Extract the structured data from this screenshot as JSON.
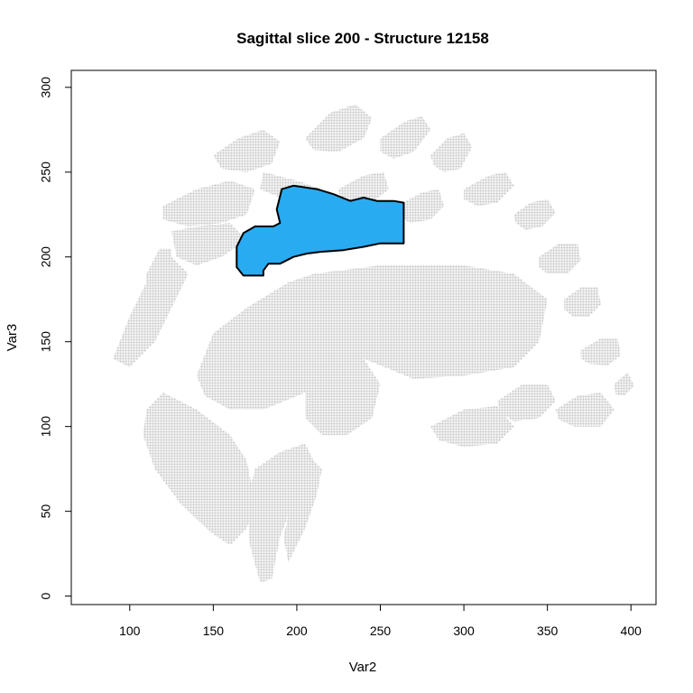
{
  "chart_data": {
    "type": "scatter",
    "title": "Sagittal slice 200 - Structure 12158",
    "xlabel": "Var2",
    "ylabel": "Var3",
    "xlim": [
      65,
      415
    ],
    "ylim": [
      -5,
      310
    ],
    "x_ticks": [
      100,
      150,
      200,
      250,
      300,
      350,
      400
    ],
    "y_ticks": [
      0,
      50,
      100,
      150,
      200,
      250,
      300
    ],
    "grid": false,
    "background_color": "#d3d3d3",
    "structure_color": "#29abf2",
    "outline_color": "#000000",
    "series": [
      {
        "name": "",
        "role": "background",
        "polygons": [
          [
            [
              140,
              130
            ],
            [
              150,
              155
            ],
            [
              170,
              170
            ],
            [
              195,
              185
            ],
            [
              210,
              190
            ],
            [
              250,
              195
            ],
            [
              300,
              195
            ],
            [
              330,
              190
            ],
            [
              350,
              175
            ],
            [
              345,
              150
            ],
            [
              330,
              135
            ],
            [
              300,
              130
            ],
            [
              270,
              128
            ],
            [
              240,
              140
            ],
            [
              225,
              130
            ],
            [
              205,
              120
            ],
            [
              180,
              110
            ],
            [
              160,
              110
            ],
            [
              145,
              118
            ]
          ],
          [
            [
              120,
              120
            ],
            [
              140,
              110
            ],
            [
              160,
              95
            ],
            [
              170,
              80
            ],
            [
              175,
              55
            ],
            [
              170,
              40
            ],
            [
              160,
              30
            ],
            [
              148,
              38
            ],
            [
              130,
              55
            ],
            [
              115,
              75
            ],
            [
              108,
              95
            ],
            [
              110,
              110
            ]
          ],
          [
            [
              175,
              75
            ],
            [
              190,
              85
            ],
            [
              205,
              90
            ],
            [
              210,
              80
            ],
            [
              200,
              60
            ],
            [
              190,
              35
            ],
            [
              185,
              10
            ],
            [
              178,
              8
            ],
            [
              172,
              30
            ],
            [
              170,
              55
            ]
          ],
          [
            [
              205,
              120
            ],
            [
              225,
              130
            ],
            [
              240,
              140
            ],
            [
              250,
              125
            ],
            [
              245,
              105
            ],
            [
              230,
              95
            ],
            [
              215,
              95
            ],
            [
              205,
              105
            ]
          ],
          [
            [
              195,
              20
            ],
            [
              205,
              40
            ],
            [
              212,
              60
            ],
            [
              215,
              75
            ],
            [
              205,
              85
            ],
            [
              198,
              60
            ],
            [
              192,
              35
            ]
          ],
          [
            [
              180,
              250
            ],
            [
              200,
              245
            ],
            [
              215,
              240
            ],
            [
              220,
              230
            ],
            [
              205,
              228
            ],
            [
              190,
              235
            ],
            [
              178,
              240
            ]
          ],
          [
            [
              120,
              230
            ],
            [
              140,
              240
            ],
            [
              160,
              245
            ],
            [
              175,
              240
            ],
            [
              170,
              225
            ],
            [
              155,
              220
            ],
            [
              135,
              218
            ],
            [
              120,
              222
            ]
          ],
          [
            [
              90,
              140
            ],
            [
              100,
              165
            ],
            [
              110,
              185
            ],
            [
              125,
              200
            ],
            [
              135,
              190
            ],
            [
              125,
              170
            ],
            [
              115,
              150
            ],
            [
              100,
              135
            ]
          ],
          [
            [
              125,
              215
            ],
            [
              140,
              218
            ],
            [
              160,
              220
            ],
            [
              170,
              210
            ],
            [
              155,
              200
            ],
            [
              140,
              195
            ],
            [
              128,
              200
            ]
          ],
          [
            [
              150,
              260
            ],
            [
              165,
              270
            ],
            [
              180,
              275
            ],
            [
              190,
              268
            ],
            [
              185,
              255
            ],
            [
              170,
              250
            ],
            [
              155,
              252
            ]
          ],
          [
            [
              205,
              270
            ],
            [
              220,
              285
            ],
            [
              235,
              290
            ],
            [
              245,
              282
            ],
            [
              240,
              270
            ],
            [
              225,
              262
            ],
            [
              210,
              263
            ]
          ],
          [
            [
              250,
              270
            ],
            [
              265,
              280
            ],
            [
              275,
              283
            ],
            [
              280,
              275
            ],
            [
              270,
              262
            ],
            [
              258,
              258
            ],
            [
              250,
              262
            ]
          ],
          [
            [
              280,
              260
            ],
            [
              290,
              270
            ],
            [
              300,
              273
            ],
            [
              305,
              265
            ],
            [
              298,
              252
            ],
            [
              288,
              250
            ],
            [
              282,
              254
            ]
          ],
          [
            [
              300,
              240
            ],
            [
              315,
              248
            ],
            [
              325,
              250
            ],
            [
              330,
              242
            ],
            [
              320,
              232
            ],
            [
              308,
              230
            ],
            [
              300,
              234
            ]
          ],
          [
            [
              330,
              225
            ],
            [
              340,
              232
            ],
            [
              350,
              234
            ],
            [
              355,
              226
            ],
            [
              347,
              218
            ],
            [
              337,
              216
            ],
            [
              331,
              220
            ]
          ],
          [
            [
              345,
              200
            ],
            [
              357,
              208
            ],
            [
              368,
              208
            ],
            [
              370,
              198
            ],
            [
              362,
              190
            ],
            [
              350,
              190
            ],
            [
              345,
              194
            ]
          ],
          [
            [
              360,
              175
            ],
            [
              370,
              182
            ],
            [
              380,
              182
            ],
            [
              382,
              172
            ],
            [
              375,
              165
            ],
            [
              365,
              165
            ],
            [
              360,
              169
            ]
          ],
          [
            [
              370,
              145
            ],
            [
              382,
              152
            ],
            [
              392,
              152
            ],
            [
              394,
              142
            ],
            [
              386,
              136
            ],
            [
              375,
              137
            ],
            [
              370,
              140
            ]
          ],
          [
            [
              355,
              110
            ],
            [
              368,
              118
            ],
            [
              382,
              120
            ],
            [
              390,
              110
            ],
            [
              382,
              100
            ],
            [
              366,
              100
            ],
            [
              357,
              104
            ]
          ],
          [
            [
              320,
              115
            ],
            [
              335,
              125
            ],
            [
              350,
              125
            ],
            [
              355,
              115
            ],
            [
              345,
              105
            ],
            [
              330,
              103
            ],
            [
              322,
              108
            ]
          ],
          [
            [
              260,
              230
            ],
            [
              275,
              238
            ],
            [
              285,
              240
            ],
            [
              288,
              230
            ],
            [
              280,
              222
            ],
            [
              268,
              220
            ],
            [
              261,
              224
            ]
          ],
          [
            [
              225,
              240
            ],
            [
              240,
              248
            ],
            [
              252,
              250
            ],
            [
              255,
              240
            ],
            [
              245,
              232
            ],
            [
              232,
              230
            ],
            [
              226,
              235
            ]
          ],
          [
            [
              110,
              190
            ],
            [
              118,
              205
            ],
            [
              125,
              205
            ],
            [
              125,
              190
            ],
            [
              117,
              180
            ],
            [
              110,
              182
            ]
          ],
          [
            [
              280,
              100
            ],
            [
              300,
              110
            ],
            [
              320,
              112
            ],
            [
              330,
              100
            ],
            [
              320,
              90
            ],
            [
              300,
              88
            ],
            [
              285,
              92
            ]
          ],
          [
            [
              390,
              125
            ],
            [
              398,
              132
            ],
            [
              402,
              124
            ],
            [
              396,
              118
            ],
            [
              391,
              119
            ]
          ]
        ]
      },
      {
        "name": "",
        "role": "structure",
        "polygons": [
          [
            [
              164,
              206
            ],
            [
              168,
              214
            ],
            [
              175,
              218
            ],
            [
              186,
              218
            ],
            [
              190,
              220
            ],
            [
              188,
              228
            ],
            [
              191,
              240
            ],
            [
              198,
              242
            ],
            [
              212,
              240
            ],
            [
              222,
              237
            ],
            [
              232,
              233
            ],
            [
              240,
              235
            ],
            [
              248,
              233
            ],
            [
              258,
              233
            ],
            [
              264,
              232
            ],
            [
              264,
              208
            ],
            [
              250,
              208
            ],
            [
              240,
              206
            ],
            [
              228,
              204
            ],
            [
              214,
              203
            ],
            [
              206,
              202
            ],
            [
              198,
              200
            ],
            [
              190,
              196
            ],
            [
              183,
              196
            ],
            [
              180,
              192
            ],
            [
              180,
              189
            ],
            [
              168,
              189
            ],
            [
              164,
              194
            ]
          ]
        ]
      }
    ]
  }
}
